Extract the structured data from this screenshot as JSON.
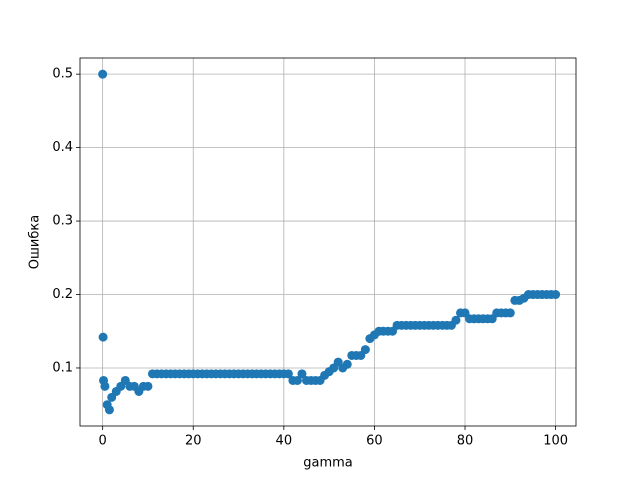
{
  "chart_data": {
    "type": "scatter",
    "xlabel": "gamma",
    "ylabel": "Ошибка",
    "color": "#1f77b4",
    "grid": true,
    "xlim": [
      -5,
      104.5
    ],
    "ylim": [
      0.021,
      0.522
    ],
    "xticks": [
      0,
      20,
      40,
      60,
      80,
      100
    ],
    "yticks": [
      0.1,
      0.2,
      0.3,
      0.4,
      0.5
    ],
    "x": [
      0,
      0.1,
      0.2,
      0.5,
      1,
      1.5,
      2,
      3,
      4,
      5,
      6,
      7,
      8,
      9,
      10,
      11,
      12,
      13,
      14,
      15,
      16,
      17,
      18,
      19,
      20,
      21,
      22,
      23,
      24,
      25,
      26,
      27,
      28,
      29,
      30,
      31,
      32,
      33,
      34,
      35,
      36,
      37,
      38,
      39,
      40,
      41,
      42,
      43,
      44,
      45,
      46,
      47,
      48,
      49,
      50,
      51,
      52,
      53,
      54,
      55,
      56,
      57,
      58,
      59,
      60,
      61,
      62,
      63,
      64,
      65,
      66,
      67,
      68,
      69,
      70,
      71,
      72,
      73,
      74,
      75,
      76,
      77,
      78,
      79,
      80,
      81,
      82,
      83,
      84,
      85,
      86,
      87,
      88,
      89,
      90,
      91,
      92,
      93,
      94,
      95,
      96,
      97,
      98,
      99,
      100
    ],
    "values": [
      0.5,
      0.142,
      0.083,
      0.075,
      0.05,
      0.043,
      0.06,
      0.068,
      0.075,
      0.083,
      0.075,
      0.075,
      0.068,
      0.075,
      0.075,
      0.092,
      0.092,
      0.092,
      0.092,
      0.092,
      0.092,
      0.092,
      0.092,
      0.092,
      0.092,
      0.092,
      0.092,
      0.092,
      0.092,
      0.092,
      0.092,
      0.092,
      0.092,
      0.092,
      0.092,
      0.092,
      0.092,
      0.092,
      0.092,
      0.092,
      0.092,
      0.092,
      0.092,
      0.092,
      0.092,
      0.092,
      0.083,
      0.083,
      0.092,
      0.083,
      0.083,
      0.083,
      0.083,
      0.09,
      0.095,
      0.1,
      0.108,
      0.1,
      0.105,
      0.117,
      0.117,
      0.117,
      0.125,
      0.14,
      0.145,
      0.15,
      0.15,
      0.15,
      0.15,
      0.158,
      0.158,
      0.158,
      0.158,
      0.158,
      0.158,
      0.158,
      0.158,
      0.158,
      0.158,
      0.158,
      0.158,
      0.158,
      0.165,
      0.175,
      0.175,
      0.167,
      0.167,
      0.167,
      0.167,
      0.167,
      0.167,
      0.175,
      0.175,
      0.175,
      0.175,
      0.192,
      0.192,
      0.195,
      0.2,
      0.2,
      0.2,
      0.2,
      0.2,
      0.2,
      0.2
    ]
  }
}
